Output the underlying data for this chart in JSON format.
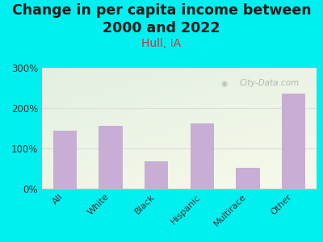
{
  "title_line1": "Change in per capita income between",
  "title_line2": "2000 and 2022",
  "subtitle": "Hull, IA",
  "categories": [
    "All",
    "White",
    "Black",
    "Hispanic",
    "Multirace",
    "Other"
  ],
  "values": [
    145,
    157,
    68,
    163,
    52,
    237
  ],
  "bar_color": "#c8aed4",
  "title_fontsize": 12.5,
  "subtitle_fontsize": 10,
  "subtitle_color": "#cc3333",
  "title_color": "#1a1a1a",
  "background_color": "#00f0f0",
  "ylim": [
    0,
    300
  ],
  "yticks": [
    0,
    100,
    200,
    300
  ],
  "ytick_labels": [
    "0%",
    "100%",
    "200%",
    "300%"
  ],
  "watermark": "City-Data.com",
  "watermark_color": "#aaaaaa",
  "grid_color": "#dddddd"
}
